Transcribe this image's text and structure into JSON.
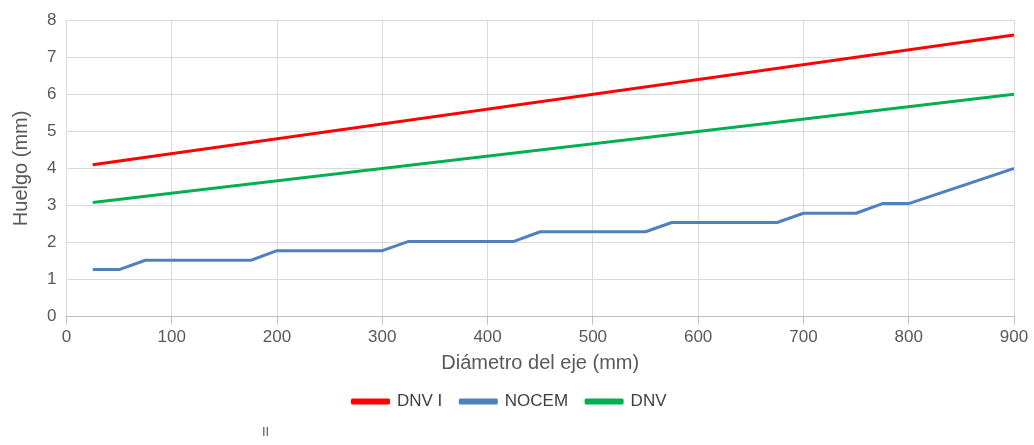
{
  "chart_data": {
    "type": "line",
    "xlabel": "Diámetro del eje (mm)",
    "ylabel": "Huelgo (mm)",
    "xlim": [
      0,
      900
    ],
    "xticks": [
      0,
      100,
      200,
      300,
      400,
      500,
      600,
      700,
      800,
      900
    ],
    "ylim": [
      0,
      8
    ],
    "yticks": [
      0,
      1,
      2,
      3,
      4,
      5,
      6,
      7,
      8
    ],
    "grid": true,
    "legend": "bottom",
    "marker": "none",
    "line_style": "solid",
    "series": [
      {
        "name": "DNV I",
        "color": "#ff0000",
        "x": [
          25,
          900
        ],
        "values": [
          4.1,
          7.6
        ]
      },
      {
        "name": "NOCEM",
        "color": "#4f81bd",
        "x": [
          25,
          50,
          75,
          175,
          200,
          300,
          325,
          425,
          450,
          550,
          575,
          675,
          700,
          750,
          775,
          800,
          900
        ],
        "values": [
          1.27,
          1.27,
          1.52,
          1.52,
          1.78,
          1.78,
          2.03,
          2.03,
          2.29,
          2.29,
          2.54,
          2.54,
          2.79,
          2.79,
          3.05,
          3.05,
          4.0
        ]
      },
      {
        "name": "DNV",
        "color": "#00b050",
        "x": [
          25,
          900
        ],
        "values": [
          3.08,
          6.0
        ]
      }
    ],
    "annotations": [
      "II"
    ]
  }
}
